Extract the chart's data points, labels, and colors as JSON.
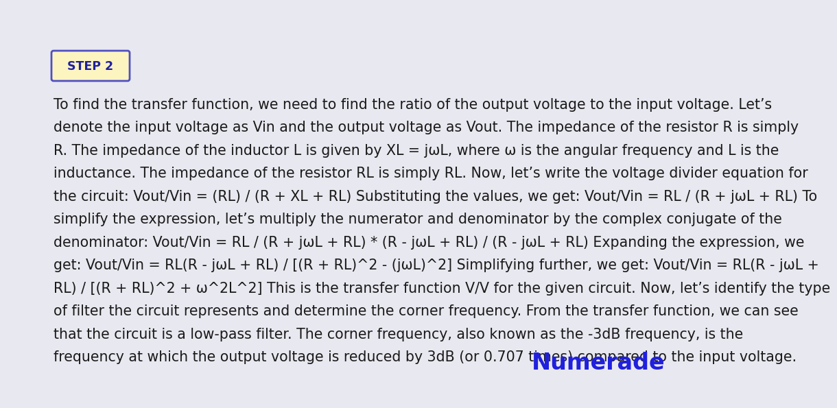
{
  "background_color": "#e8e8f0",
  "step_label": "STEP 2",
  "step_box_bg": "#fdf5c0",
  "step_box_border": "#5050c0",
  "step_text_color": "#2020a0",
  "body_text_color": "#1a1a1a",
  "brand_text": "Numerade",
  "brand_color": "#2020dd",
  "font_size_body": 14.8,
  "font_size_step": 12.5,
  "font_size_brand": 24,
  "lines": [
    "To find the transfer function, we need to find the ratio of the output voltage to the input voltage. Let’s",
    "denote the input voltage as Vin and the output voltage as Vout. The impedance of the resistor R is simply",
    "R. The impedance of the inductor L is given by XL = jωL, where ω is the angular frequency and L is the",
    "inductance. The impedance of the resistor RL is simply RL. Now, let’s write the voltage divider equation for",
    "the circuit: Vout/Vin = (RL) / (R + XL + RL) Substituting the values, we get: Vout/Vin = RL / (R + jωL + RL) To",
    "simplify the expression, let’s multiply the numerator and denominator by the complex conjugate of the",
    "denominator: Vout/Vin = RL / (R + jωL + RL) * (R - jωL + RL) / (R - jωL + RL) Expanding the expression, we",
    "get: Vout/Vin = RL(R - jωL + RL) / [(R + RL)^2 - (jωL)^2] Simplifying further, we get: Vout/Vin = RL(R - jωL +",
    "RL) / [(R + RL)^2 + ω^2L^2] This is the transfer function V/V for the given circuit. Now, let’s identify the type",
    "of filter the circuit represents and determine the corner frequency. From the transfer function, we can see",
    "that the circuit is a low-pass filter. The corner frequency, also known as the -3dB frequency, is the",
    "frequency at which the output voltage is reduced by 3dB (or 0.707 times) compared to the input voltage."
  ]
}
